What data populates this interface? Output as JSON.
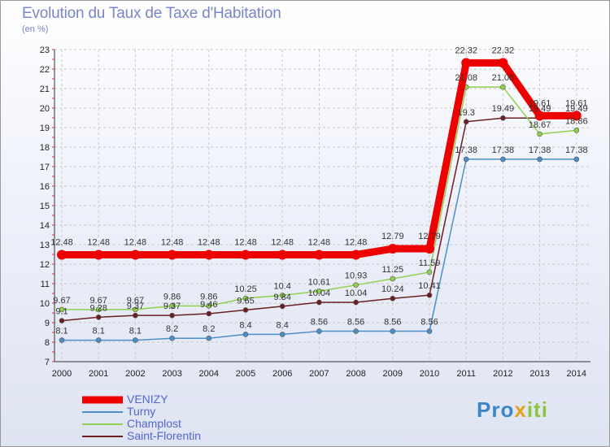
{
  "header": {
    "title": "Evolution du Taux de Taxe d'Habitation",
    "unit": "(en %)"
  },
  "logo": {
    "part1": "Pro",
    "part2": "x",
    "part3": "iti"
  },
  "chart_data": {
    "type": "line",
    "title": "Evolution du Taux de Taxe d'Habitation",
    "ylabel": "(en %)",
    "xlabel": "",
    "ylim": [
      7,
      23
    ],
    "grid": true,
    "legend": "bottom-left",
    "x": [
      "2000",
      "2001",
      "2002",
      "2003",
      "2004",
      "2005",
      "2006",
      "2007",
      "2008",
      "2009",
      "2010",
      "2011",
      "2012",
      "2013",
      "2014"
    ],
    "y_ticks": [
      "7",
      "8",
      "9",
      "10",
      "11",
      "12",
      "13",
      "14",
      "15",
      "16",
      "17",
      "18",
      "19",
      "20",
      "21",
      "22",
      "23"
    ],
    "series": [
      {
        "name": "Turny",
        "color": "#4b8fc8",
        "values": [
          8.1,
          8.1,
          8.1,
          8.2,
          8.2,
          8.4,
          8.4,
          8.56,
          8.56,
          8.56,
          8.56,
          17.38,
          17.38,
          17.38,
          17.38
        ],
        "labels": [
          "8.1",
          "8.1",
          "8.1",
          "8.2",
          "8.2",
          "8.4",
          "8.4",
          "8.56",
          "8.56",
          "8.56",
          "8.56",
          "17.38",
          "17.38",
          "17.38",
          "17.38"
        ]
      },
      {
        "name": "Saint-Florentin",
        "color": "#6a1f22",
        "values": [
          9.1,
          9.28,
          9.37,
          9.37,
          9.46,
          9.65,
          9.84,
          10.04,
          10.04,
          10.24,
          10.41,
          19.3,
          19.49,
          19.49,
          19.49
        ],
        "labels": [
          "9.1",
          "9.28",
          "9.37",
          "9.37",
          "9.46",
          "9.65",
          "9.84",
          "10.04",
          "10.04",
          "10.24",
          "10.41",
          "19.3",
          "19.49",
          "19.49",
          "19.49"
        ]
      },
      {
        "name": "Champlost",
        "color": "#8fd14f",
        "values": [
          9.67,
          9.67,
          9.67,
          9.86,
          9.86,
          10.25,
          10.4,
          10.61,
          10.93,
          11.25,
          11.59,
          21.08,
          21.08,
          18.67,
          18.86
        ],
        "labels": [
          "9.67",
          "9.67",
          "9.67",
          "9.86",
          "9.86",
          "10.25",
          "10.4",
          "10.61",
          "10.93",
          "11.25",
          "11.59",
          "21.08",
          "21.08",
          "18.67",
          "18.86"
        ]
      },
      {
        "name": "VENIZY",
        "color": "#ee0000",
        "values": [
          12.48,
          12.48,
          12.48,
          12.48,
          12.48,
          12.48,
          12.48,
          12.48,
          12.48,
          12.79,
          12.79,
          22.32,
          22.32,
          19.61,
          19.61
        ],
        "labels": [
          "12.48",
          "12.48",
          "12.48",
          "12.48",
          "12.48",
          "12.48",
          "12.48",
          "12.48",
          "12.48",
          "12.79",
          "12.79",
          "22.32",
          "22.32",
          "19.61",
          "19.61"
        ]
      }
    ],
    "legend_order": [
      "VENIZY",
      "Turny",
      "Champlost",
      "Saint-Florentin"
    ]
  }
}
